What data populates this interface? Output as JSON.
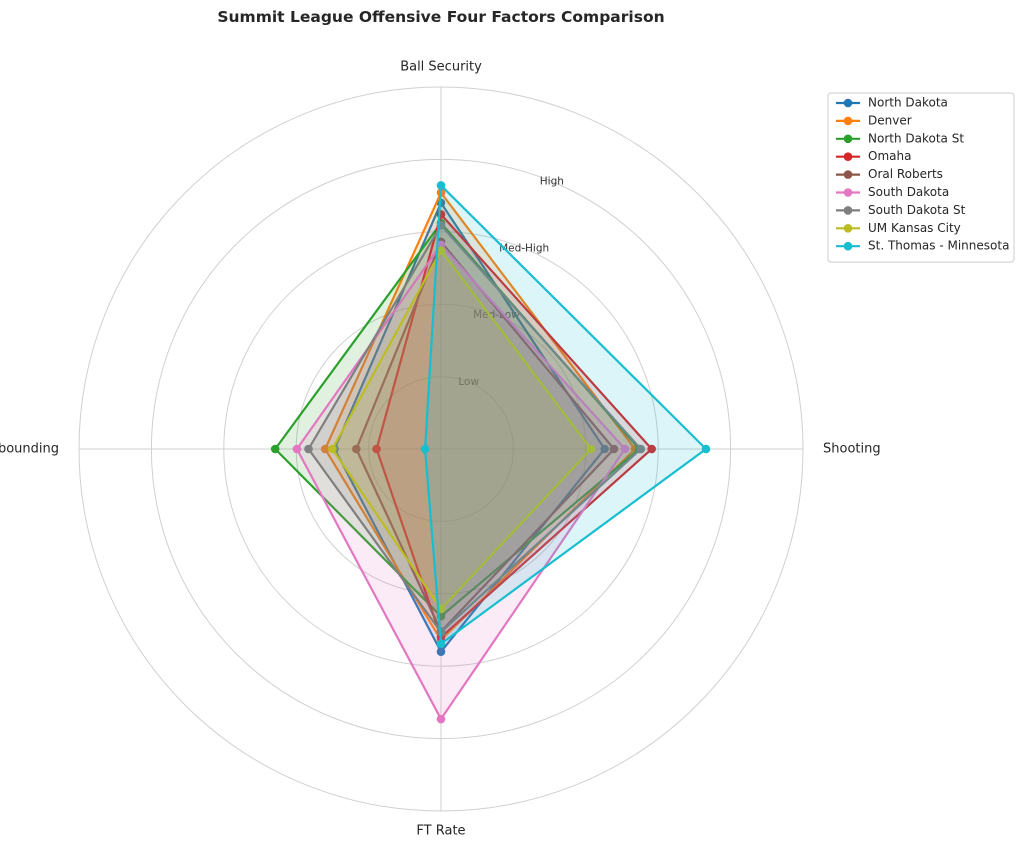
{
  "chart_data": {
    "type": "radar",
    "title": "Summit League Offensive Four Factors Comparison",
    "axes": [
      "Ball Security",
      "Shooting",
      "FT Rate",
      "Off Rebounding"
    ],
    "ring_labels": [
      "Low",
      "Med-Low",
      "Med-High",
      "High"
    ],
    "rlim": [
      0,
      5
    ],
    "grid": true,
    "legend_position": "upper-right",
    "series": [
      {
        "name": "North Dakota",
        "color": "#1f77b4",
        "values": [
          3.4,
          2.26,
          2.8,
          1.47
        ]
      },
      {
        "name": "Denver",
        "color": "#ff7f0e",
        "values": [
          3.54,
          2.68,
          2.64,
          1.6
        ]
      },
      {
        "name": "North Dakota St",
        "color": "#2ca02c",
        "values": [
          3.12,
          2.74,
          2.31,
          2.29
        ]
      },
      {
        "name": "Omaha",
        "color": "#d62728",
        "values": [
          3.24,
          2.91,
          2.6,
          0.89
        ]
      },
      {
        "name": "Oral Roberts",
        "color": "#8c564b",
        "values": [
          2.86,
          2.39,
          2.52,
          1.17
        ]
      },
      {
        "name": "South Dakota",
        "color": "#e377c2",
        "values": [
          2.82,
          2.54,
          3.73,
          1.99
        ]
      },
      {
        "name": "South Dakota St",
        "color": "#7f7f7f",
        "values": [
          3.09,
          2.76,
          2.53,
          1.83
        ]
      },
      {
        "name": "UM Kansas City",
        "color": "#bcbd22",
        "values": [
          2.74,
          2.07,
          2.21,
          1.5
        ]
      },
      {
        "name": "St. Thomas - Minnesota",
        "color": "#17becf",
        "values": [
          3.64,
          3.66,
          2.69,
          0.22
        ]
      }
    ]
  }
}
